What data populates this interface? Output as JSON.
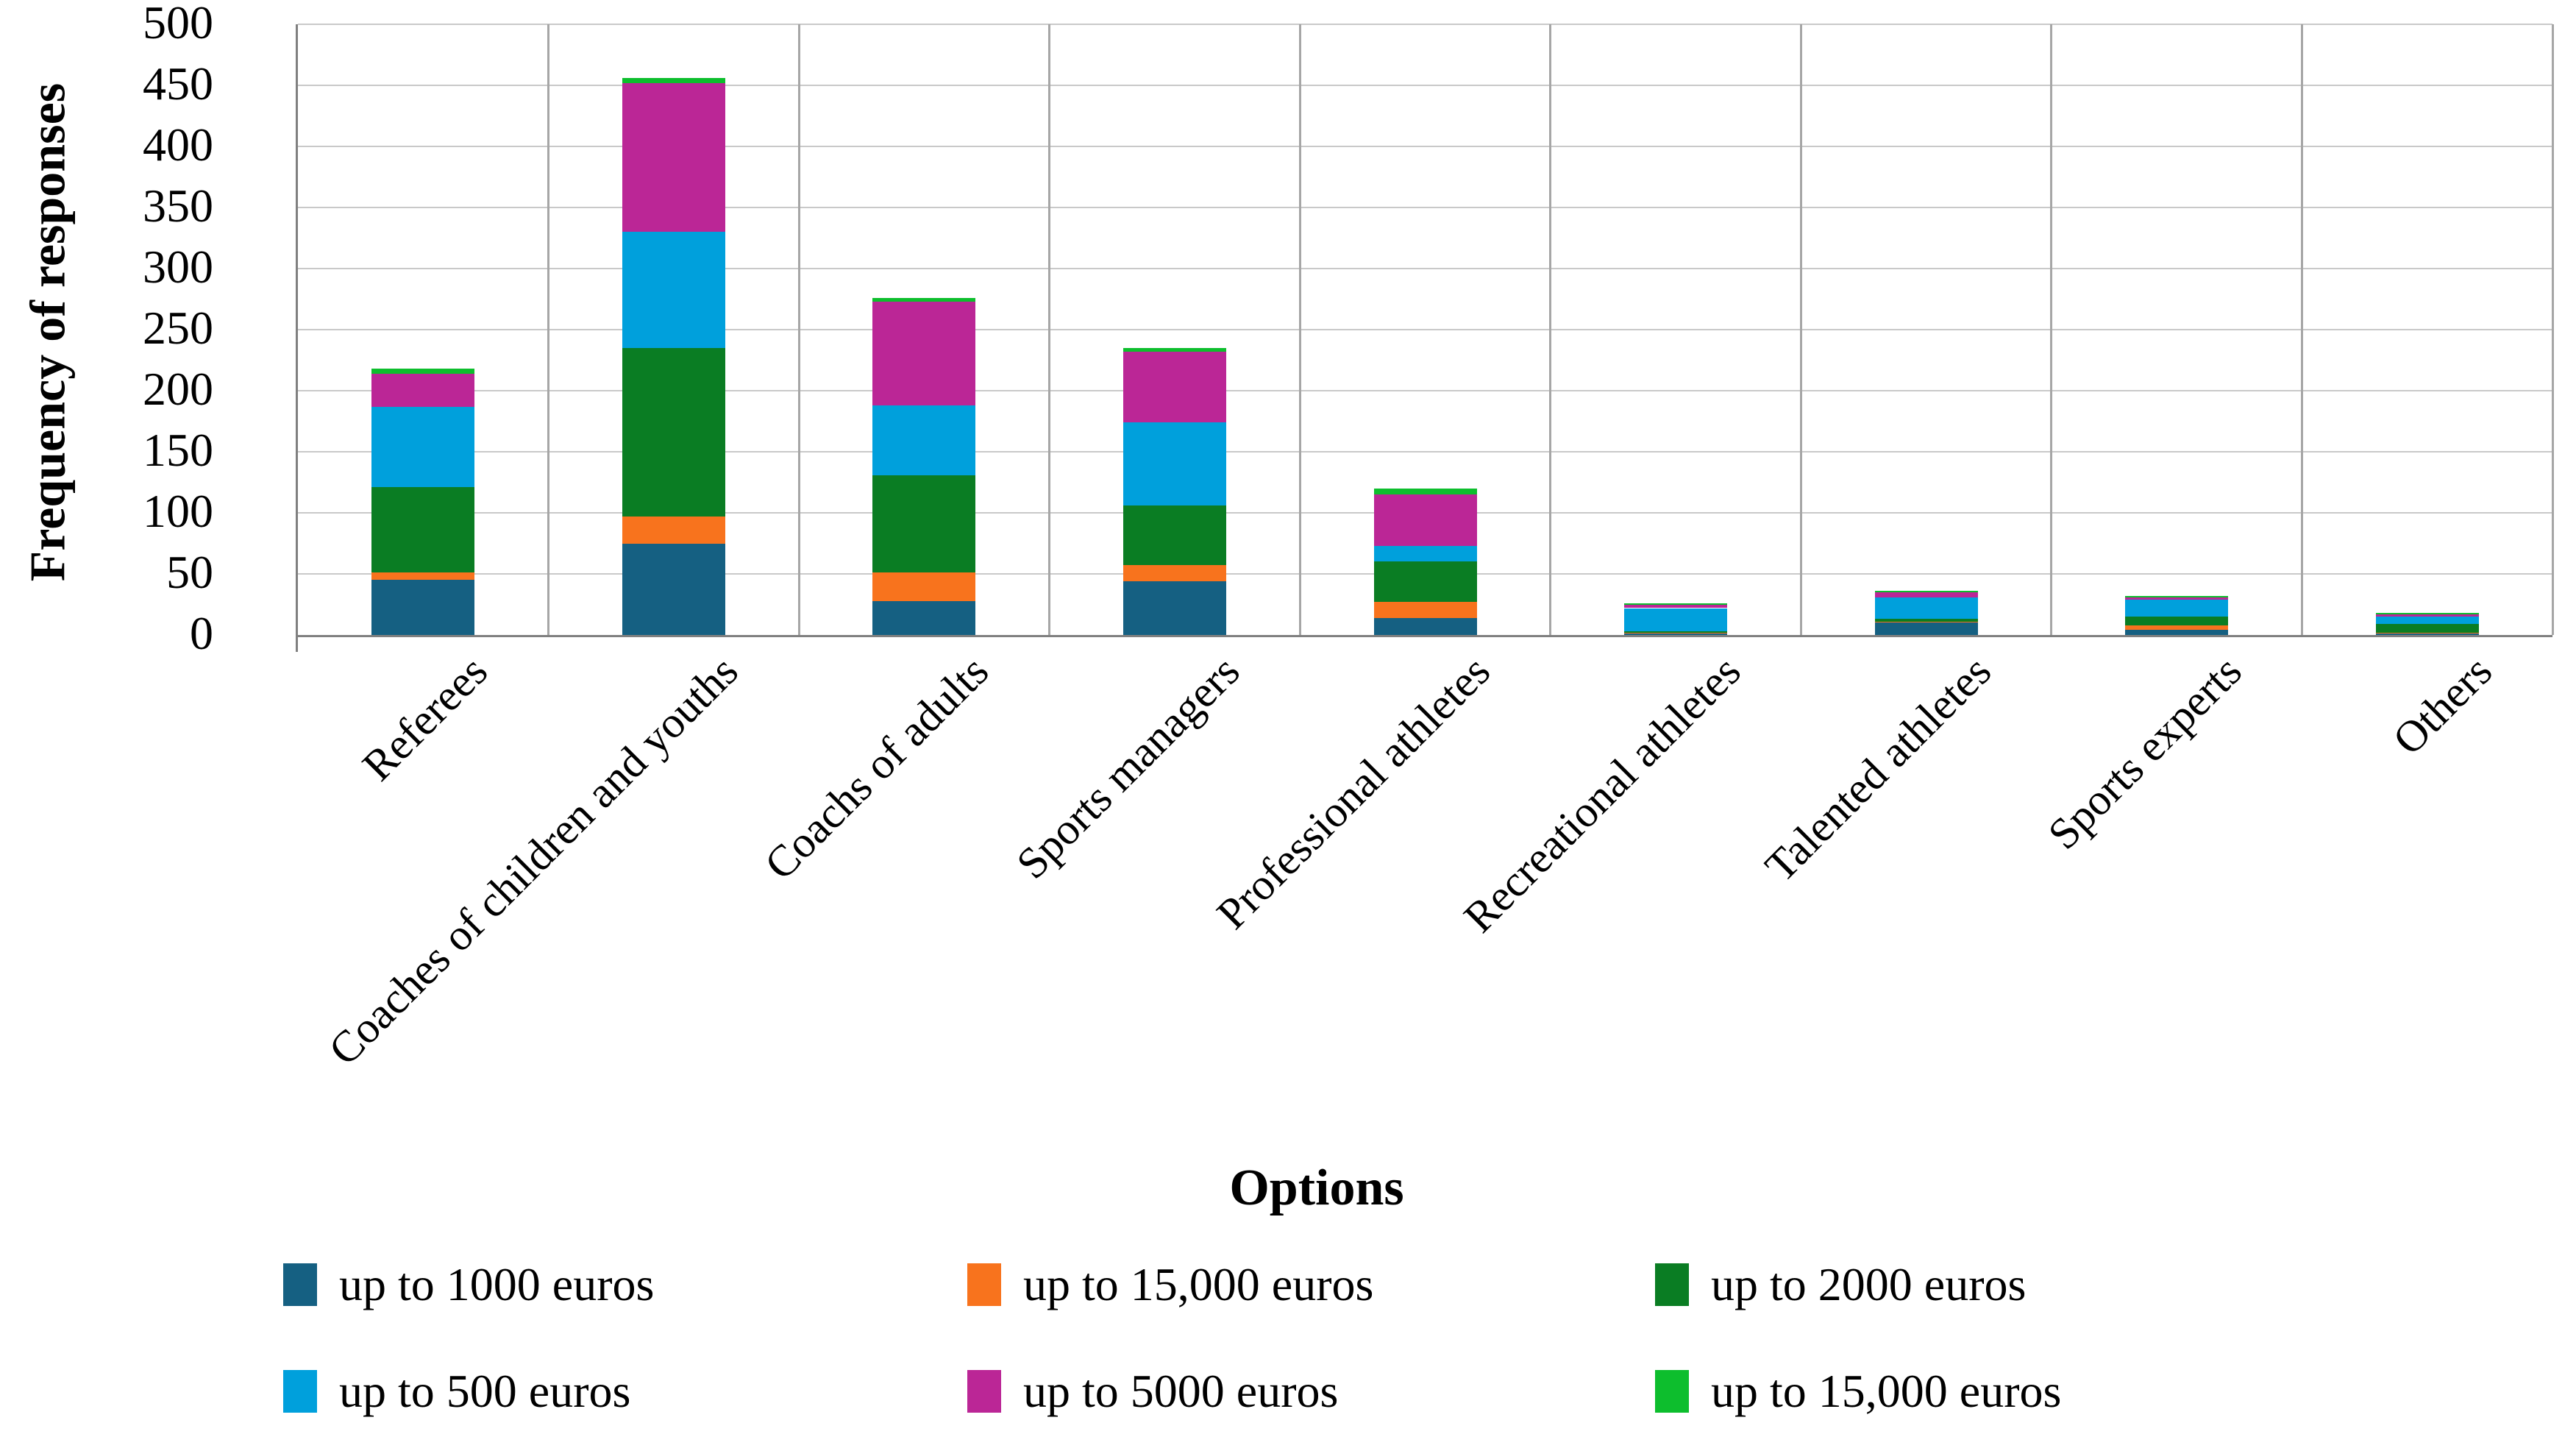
{
  "y_axis": {
    "title": "Frequency of responses",
    "min": 0,
    "max": 500,
    "step": 50,
    "ticks": [
      0,
      50,
      100,
      150,
      200,
      250,
      300,
      350,
      400,
      450,
      500
    ]
  },
  "x_axis": {
    "title": "Options"
  },
  "colors": {
    "background": "#ffffff",
    "axis": "#808080",
    "grid_horizontal": "#c9c9c9",
    "grid_vertical": "#a6a6a6",
    "text": "#000000"
  },
  "chart_data": {
    "type": "bar",
    "stacked": true,
    "title": "",
    "xlabel": "Options",
    "ylabel": "Frequency of responses",
    "ylim": [
      0,
      500
    ],
    "grid": true,
    "legend_position": "bottom",
    "categories": [
      "Referees",
      "Coaches of children and youths",
      "Coachs of adults",
      "Sports managers",
      "Professional athletes",
      "Recreational athletes",
      "Talented athletes",
      "Sports experts",
      "Others"
    ],
    "series": [
      {
        "name": "up to 1000 euros",
        "color": "#156082",
        "values": [
          45,
          75,
          28,
          44,
          14,
          1,
          10,
          4,
          1
        ]
      },
      {
        "name": "up to 15,000 euros",
        "color": "#f8731d",
        "values": [
          6,
          22,
          23,
          13,
          13,
          1,
          1,
          4,
          1
        ]
      },
      {
        "name": "up to 2000 euros",
        "color": "#0a7d23",
        "values": [
          70,
          138,
          80,
          49,
          33,
          1,
          2,
          7,
          7
        ]
      },
      {
        "name": "up to 500 euros",
        "color": "#00a0dc",
        "values": [
          66,
          95,
          57,
          68,
          13,
          19,
          18,
          14,
          6
        ]
      },
      {
        "name": "up to 5000 euros",
        "color": "#bb2696",
        "values": [
          27,
          122,
          85,
          58,
          42,
          3,
          4,
          2,
          2
        ]
      },
      {
        "name": "up to 15,000 euros",
        "color": "#0dbe2d",
        "values": [
          4,
          4,
          3,
          3,
          5,
          1,
          1,
          1,
          1
        ]
      }
    ],
    "totals": [
      218,
      456,
      276,
      235,
      120,
      26,
      36,
      32,
      18
    ]
  },
  "legend": {
    "rows": [
      [
        0,
        1,
        2
      ],
      [
        3,
        4,
        5
      ]
    ]
  }
}
